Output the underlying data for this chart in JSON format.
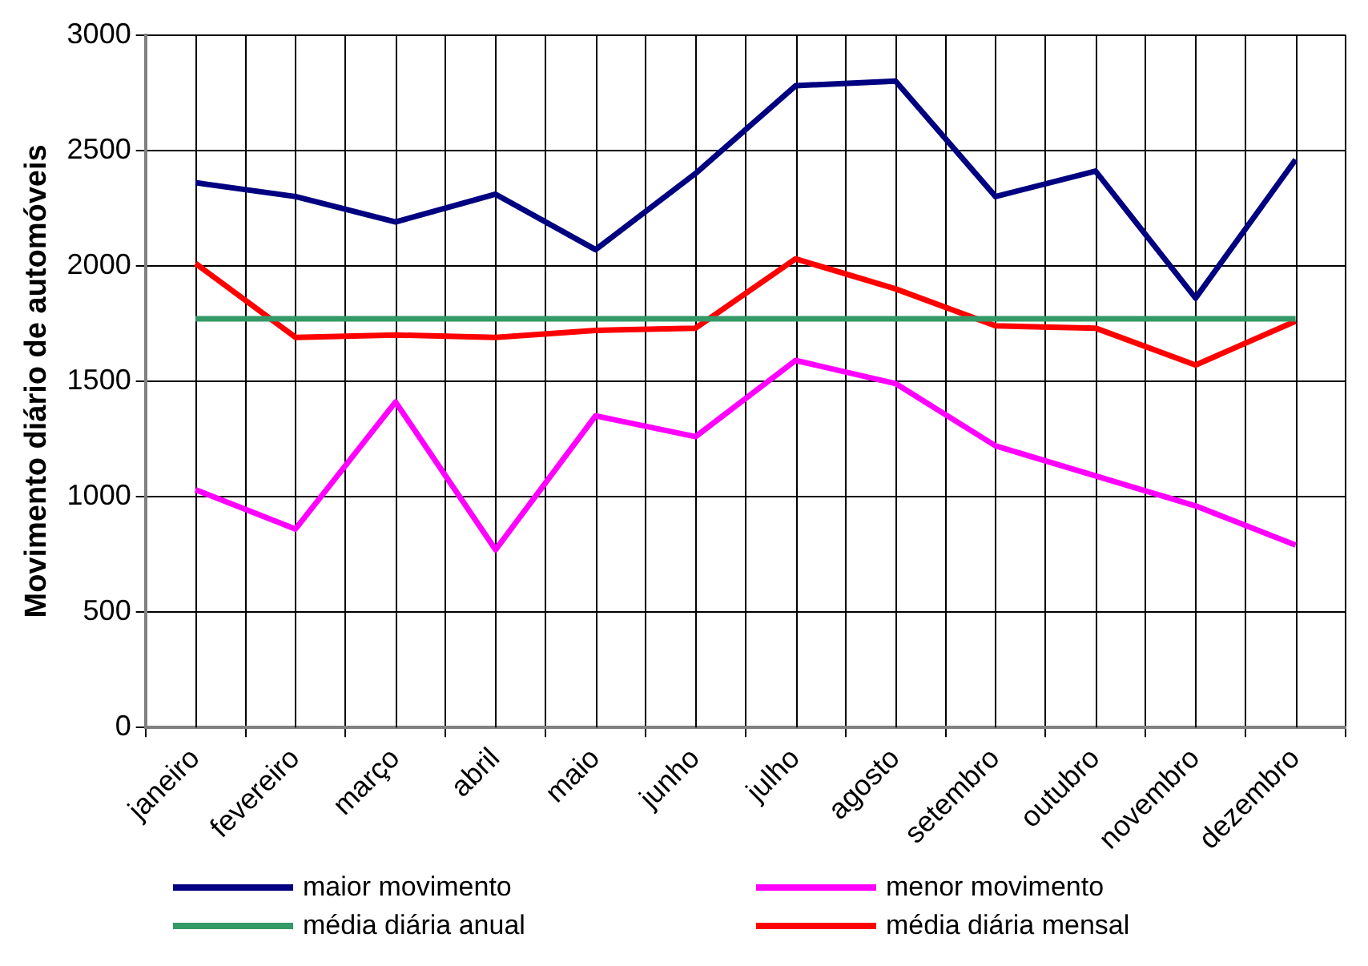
{
  "chart_data": {
    "type": "line",
    "ylabel": "Movimento diário de automóveis",
    "categories": [
      "janeiro",
      "fevereiro",
      "março",
      "abril",
      "maio",
      "junho",
      "julho",
      "agosto",
      "setembro",
      "outubro",
      "novembro",
      "dezembro"
    ],
    "series": [
      {
        "name": "maior movimento",
        "color": "#000080",
        "values": [
          2360,
          2300,
          2190,
          2310,
          2070,
          2400,
          2780,
          2800,
          2300,
          2410,
          1860,
          2460
        ]
      },
      {
        "name": "menor movimento",
        "color": "#ff00ff",
        "values": [
          1030,
          860,
          1410,
          770,
          1350,
          1260,
          1590,
          1490,
          1220,
          1090,
          960,
          790
        ]
      },
      {
        "name": "média diária anual",
        "color": "#339966",
        "values": [
          1770,
          1770,
          1770,
          1770,
          1770,
          1770,
          1770,
          1770,
          1770,
          1770,
          1770,
          1770
        ]
      },
      {
        "name": "média diária mensal",
        "color": "#ff0000",
        "values": [
          2010,
          1690,
          1700,
          1690,
          1720,
          1730,
          2030,
          1900,
          1740,
          1730,
          1570,
          1760
        ]
      }
    ],
    "ylim": [
      0,
      3000
    ],
    "yticks": [
      0,
      500,
      1000,
      1500,
      2000,
      2500,
      3000
    ],
    "grid": true,
    "legend": "bottom",
    "marker": "none",
    "line_style": "solid"
  }
}
